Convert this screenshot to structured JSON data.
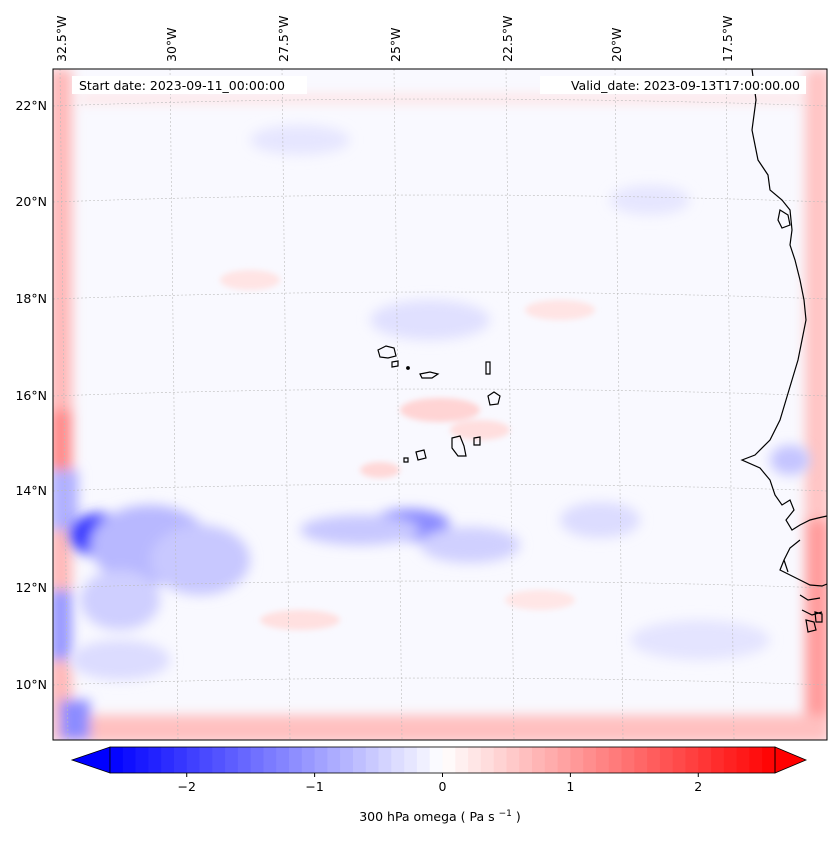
{
  "map": {
    "start_date_label": "Start date: 2023-09-11_00:00:00",
    "valid_date_label": "Valid_date: 2023-09-13T17:00:00.00",
    "lon_labels": [
      "32.5°W",
      "30°W",
      "27.5°W",
      "25°W",
      "22.5°W",
      "20°W",
      "17.5°W"
    ],
    "lat_labels": [
      "22°N",
      "20°N",
      "18°N",
      "16°N",
      "14°N",
      "12°N",
      "10°N"
    ],
    "variable": "300 hPa omega",
    "units": "Pa s",
    "units_exponent": "−1"
  },
  "colorbar": {
    "ticks": [
      "−2",
      "−1",
      "0",
      "1",
      "2"
    ],
    "tick_values": [
      -2,
      -1,
      0,
      1,
      2
    ],
    "range": [
      -2.6,
      2.6
    ],
    "colormap": "bwr",
    "low_color": "#0000ff",
    "mid_color": "#ffffff",
    "high_color": "#ff0000",
    "extend": "both"
  },
  "colors": {
    "coastline": "#000000",
    "gridline": "#bbbbbb"
  }
}
